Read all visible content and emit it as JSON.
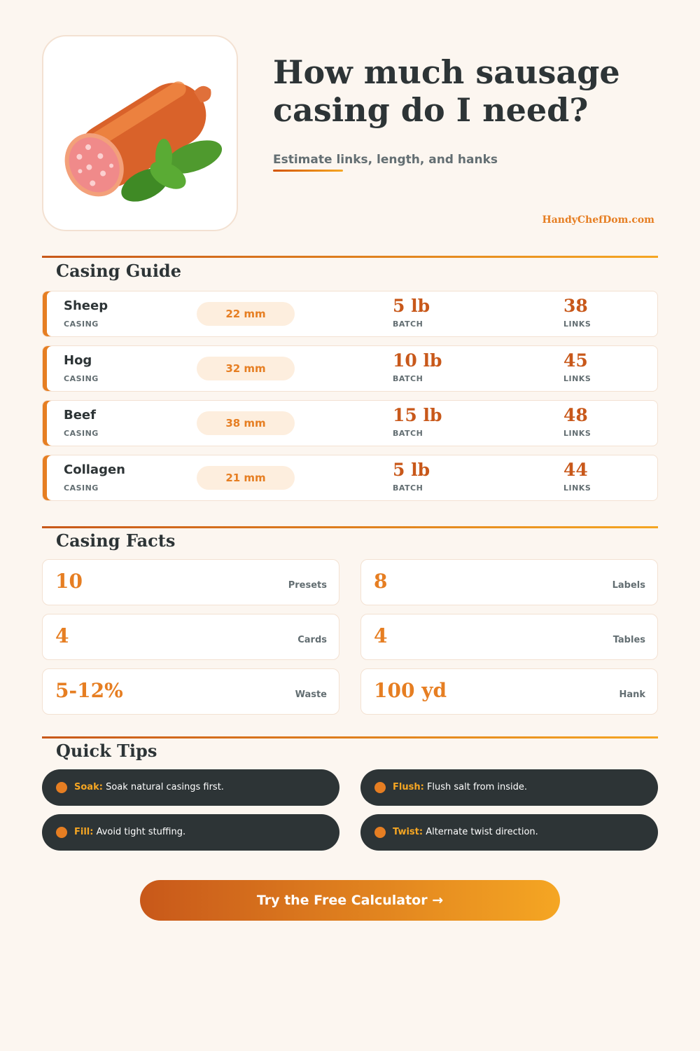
{
  "header": {
    "title": "How much sausage casing do I need?",
    "subtitle": "Estimate links, length, and hanks",
    "site": "HandyChefDom.com"
  },
  "guide": {
    "heading": "Casing Guide",
    "rows": [
      {
        "name": "Sheep",
        "name_label": "CASING",
        "size": "22 mm",
        "batch": "5 lb",
        "batch_label": "BATCH",
        "links": "38",
        "links_label": "LINKS"
      },
      {
        "name": "Hog",
        "name_label": "CASING",
        "size": "32 mm",
        "batch": "10 lb",
        "batch_label": "BATCH",
        "links": "45",
        "links_label": "LINKS"
      },
      {
        "name": "Beef",
        "name_label": "CASING",
        "size": "38 mm",
        "batch": "15 lb",
        "batch_label": "BATCH",
        "links": "48",
        "links_label": "LINKS"
      },
      {
        "name": "Collagen",
        "name_label": "CASING",
        "size": "21 mm",
        "batch": "5 lb",
        "batch_label": "BATCH",
        "links": "44",
        "links_label": "LINKS"
      }
    ]
  },
  "facts": {
    "heading": "Casing Facts",
    "items": [
      {
        "value": "10",
        "label": "Presets"
      },
      {
        "value": "8",
        "label": "Labels"
      },
      {
        "value": "4",
        "label": "Cards"
      },
      {
        "value": "4",
        "label": "Tables"
      },
      {
        "value": "5-12%",
        "label": "Waste"
      },
      {
        "value": "100 yd",
        "label": "Hank"
      }
    ]
  },
  "tips": {
    "heading": "Quick Tips",
    "items": [
      {
        "title": "Soak:",
        "text": "Soak natural casings first."
      },
      {
        "title": "Flush:",
        "text": "Flush salt from inside."
      },
      {
        "title": "Fill:",
        "text": "Avoid tight stuffing."
      },
      {
        "title": "Twist:",
        "text": "Alternate twist direction."
      }
    ]
  },
  "cta": "Try the Free Calculator →"
}
